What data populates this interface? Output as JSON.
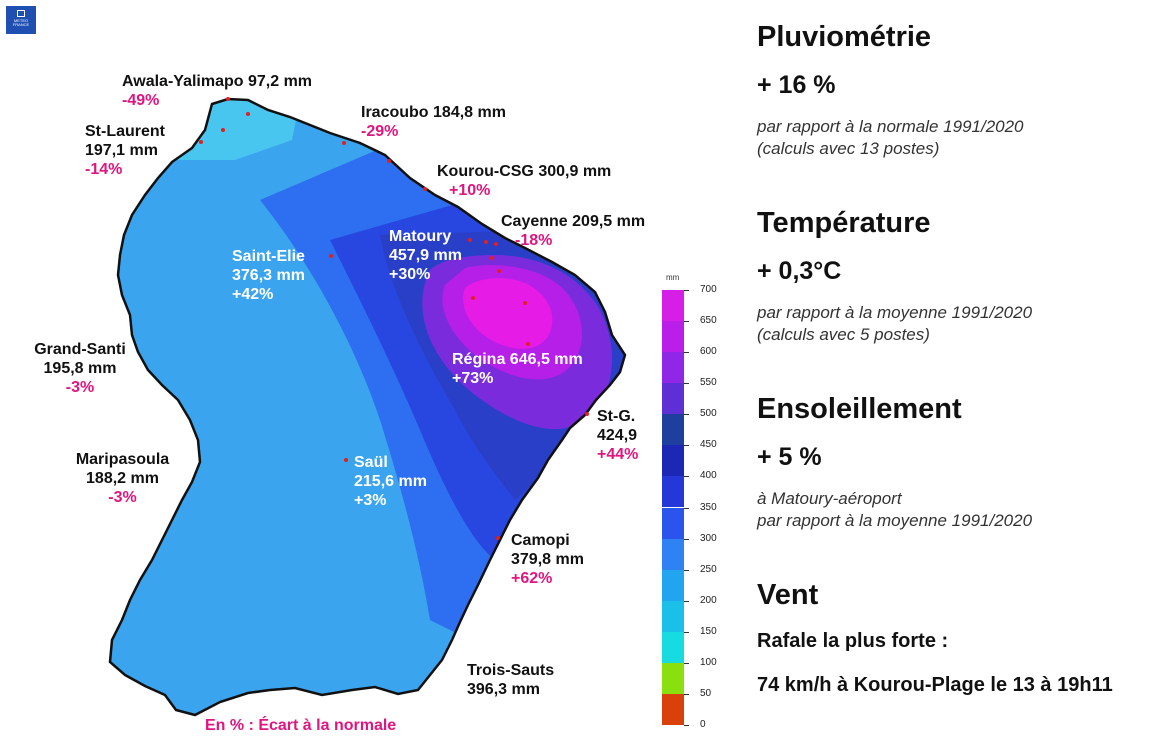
{
  "logo_text": "METEO FRANCE",
  "map": {
    "legend_note": "En % : Écart à la normale",
    "scale": {
      "unit": "mm",
      "ticks": [
        "0",
        "50",
        "100",
        "150",
        "200",
        "250",
        "300",
        "350",
        "400",
        "450",
        "500",
        "550",
        "600",
        "650",
        "700"
      ],
      "colors": [
        "#d8410a",
        "#8ae00f",
        "#16dbe0",
        "#1bc0e8",
        "#23a4ef",
        "#2f82f2",
        "#2a55ec",
        "#2637d8",
        "#1c28b5",
        "#1f3f9f",
        "#5f2fd6",
        "#9026e6",
        "#b91fe9",
        "#d61fe6",
        "#f21be7"
      ]
    },
    "stations": [
      {
        "name": "Awala-Yalimapo",
        "value": "97,2 mm",
        "pct": "-49%"
      },
      {
        "name": "Iracoubo",
        "value": "184,8 mm",
        "pct": "-29%"
      },
      {
        "name": "St-Laurent",
        "value": "197,1 mm",
        "pct": "-14%"
      },
      {
        "name": "Kourou-CSG",
        "value": "300,9 mm",
        "pct": "+10%"
      },
      {
        "name": "Cayenne",
        "value": "209,5 mm",
        "pct": "-18%"
      },
      {
        "name": "Matoury",
        "value": "457,9 mm",
        "pct": "+30%"
      },
      {
        "name": "Saint-Elie",
        "value": "376,3 mm",
        "pct": "+42%"
      },
      {
        "name": "Grand-Santi",
        "value": "195,8 mm",
        "pct": "-3%"
      },
      {
        "name": "Régina",
        "value": "646,5 mm",
        "pct": "+73%"
      },
      {
        "name": "St-G.",
        "value": "424,9",
        "pct": "+44%"
      },
      {
        "name": "Maripasoula",
        "value": "188,2 mm",
        "pct": "-3%"
      },
      {
        "name": "Saül",
        "value": "215,6 mm",
        "pct": "+3%"
      },
      {
        "name": "Camopi",
        "value": "379,8 mm",
        "pct": "+62%"
      },
      {
        "name": "Trois-Sauts",
        "value": "396,3 mm",
        "pct": ""
      }
    ]
  },
  "panel": {
    "pluvio": {
      "title": "Pluviométrie",
      "value": "+ 16 %",
      "note1": "par rapport à la normale 1991/2020",
      "note2": "(calculs avec 13 postes)"
    },
    "temperature": {
      "title": "Température",
      "value": "+ 0,3°C",
      "note1": "par rapport à la moyenne 1991/2020",
      "note2": "(calculs avec 5 postes)"
    },
    "sun": {
      "title": "Ensoleillement",
      "value": "+ 5 %",
      "note1": "à Matoury-aéroport",
      "note2": "par rapport à la moyenne 1991/2020"
    },
    "wind": {
      "title": "Vent",
      "line1": "Rafale la plus forte :",
      "line2": "74 km/h à Kourou-Plage le 13 à 19h11"
    }
  }
}
